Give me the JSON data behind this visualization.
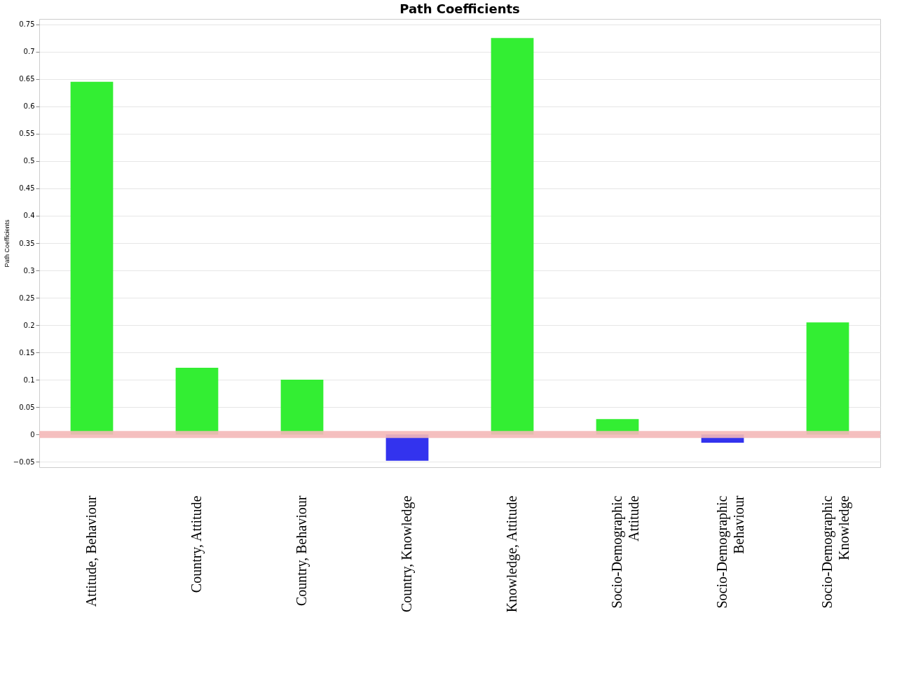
{
  "chart_data": {
    "type": "bar",
    "title": "Path Coefficients",
    "ylabel": "Path Coefficients",
    "categories": [
      "Attitude, Behaviour",
      "Country, Attitude",
      "Country, Behaviour",
      "Country, Knowledge",
      "Knowledge, Attitude",
      "Socio-Demographic\nAttitude",
      "Socio-Demographic\nBehaviour",
      "Socio-Demographic\nKnowledge"
    ],
    "values": [
      0.645,
      0.122,
      0.1,
      -0.048,
      0.725,
      0.028,
      -0.015,
      0.205
    ],
    "colors": [
      "#33ee33",
      "#33ee33",
      "#33ee33",
      "#3333ee",
      "#33ee33",
      "#33ee33",
      "#3333ee",
      "#33ee33"
    ],
    "ylim": [
      -0.06,
      0.76
    ],
    "yticks": [
      -0.05,
      0,
      0.05,
      0.1,
      0.15,
      0.2,
      0.25,
      0.3,
      0.35,
      0.4,
      0.45,
      0.5,
      0.55,
      0.6,
      0.65,
      0.7,
      0.75
    ],
    "grid": "y",
    "ref_lines": [
      {
        "axis": "y",
        "value": 0,
        "label": null,
        "color": "#f4b8b8"
      }
    ]
  }
}
